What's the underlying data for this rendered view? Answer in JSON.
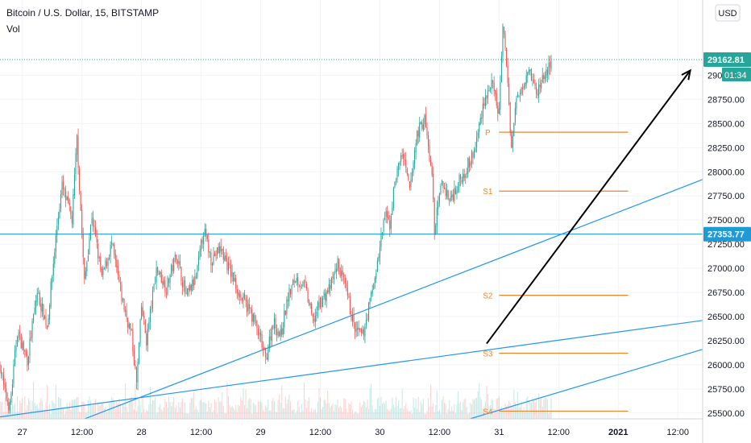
{
  "header": {
    "symbol_line": "Bitcoin / U.S. Dollar, 15, BITSTAMP",
    "indicator": "Vol"
  },
  "price_axis": {
    "currency_button": "USD",
    "current_price_label": "29162.81",
    "countdown_label": "01:34",
    "horizontal_line_label": "27353.77"
  },
  "colors": {
    "up": "#26a69a",
    "down": "#ef5350",
    "trendline": "#2196f3",
    "pivot": "#e8872b",
    "hline": "#1e9bd7",
    "current_tag": "#26a69a",
    "hline_tag": "#1e9bd7",
    "arrow": "#000000"
  },
  "chart_data": {
    "type": "candlestick",
    "title": "Bitcoin / U.S. Dollar, 15, BITSTAMP",
    "ylim": [
      25440,
      29780
    ],
    "y_ticks": [
      25500,
      25750,
      26000,
      26250,
      26500,
      26750,
      27000,
      27250,
      27500,
      27750,
      28000,
      28250,
      28500,
      28750,
      29000
    ],
    "x_ticks": [
      {
        "label": "27",
        "t": 0
      },
      {
        "label": "12:00",
        "t": 12
      },
      {
        "label": "28",
        "t": 24
      },
      {
        "label": "12:00",
        "t": 36
      },
      {
        "label": "29",
        "t": 48
      },
      {
        "label": "12:00",
        "t": 60
      },
      {
        "label": "30",
        "t": 72
      },
      {
        "label": "12:00",
        "t": 84
      },
      {
        "label": "31",
        "t": 96
      },
      {
        "label": "12:00",
        "t": 108
      },
      {
        "label": "2021",
        "t": 120
      },
      {
        "label": "12:00",
        "t": 132
      }
    ],
    "xlim_hours": [
      -4.5,
      137
    ],
    "price_path": [
      [
        -4.5,
        26000
      ],
      [
        -3.5,
        25700
      ],
      [
        -2.5,
        25560
      ],
      [
        -1,
        26350
      ],
      [
        1,
        26050
      ],
      [
        3,
        26750
      ],
      [
        5,
        26400
      ],
      [
        7,
        27450
      ],
      [
        8,
        27850
      ],
      [
        10,
        27500
      ],
      [
        11,
        28350
      ],
      [
        12.5,
        26850
      ],
      [
        14,
        27550
      ],
      [
        16,
        26900
      ],
      [
        18,
        27250
      ],
      [
        20,
        26700
      ],
      [
        22,
        26300
      ],
      [
        23,
        25800
      ],
      [
        24,
        26600
      ],
      [
        25,
        26250
      ],
      [
        27,
        27000
      ],
      [
        29,
        26800
      ],
      [
        31,
        27150
      ],
      [
        33,
        26700
      ],
      [
        35,
        26900
      ],
      [
        36.5,
        27400
      ],
      [
        38,
        27100
      ],
      [
        40,
        27200
      ],
      [
        42,
        26950
      ],
      [
        44,
        26700
      ],
      [
        46,
        26550
      ],
      [
        48,
        26250
      ],
      [
        49,
        26050
      ],
      [
        50.5,
        26450
      ],
      [
        52,
        26300
      ],
      [
        53.5,
        26700
      ],
      [
        55,
        26900
      ],
      [
        57,
        26800
      ],
      [
        58.5,
        26450
      ],
      [
        60,
        26650
      ],
      [
        62,
        26800
      ],
      [
        63.5,
        27050
      ],
      [
        65,
        26800
      ],
      [
        67,
        26350
      ],
      [
        68.5,
        26300
      ],
      [
        70,
        26650
      ],
      [
        71.5,
        27050
      ],
      [
        73,
        27550
      ],
      [
        74,
        27450
      ],
      [
        75,
        27900
      ],
      [
        76.5,
        28200
      ],
      [
        78,
        27800
      ],
      [
        79.5,
        28400
      ],
      [
        81,
        28550
      ],
      [
        82.5,
        27950
      ],
      [
        83,
        27400
      ],
      [
        84.5,
        27900
      ],
      [
        86,
        27700
      ],
      [
        88,
        27900
      ],
      [
        90,
        28100
      ],
      [
        91,
        28200
      ],
      [
        93,
        28750
      ],
      [
        94.5,
        28900
      ],
      [
        96,
        28600
      ],
      [
        96.7,
        29500
      ],
      [
        97.5,
        29150
      ],
      [
        98.5,
        28250
      ],
      [
        99.5,
        28750
      ],
      [
        101,
        28950
      ],
      [
        102,
        29100
      ],
      [
        103.5,
        28800
      ],
      [
        105,
        29000
      ],
      [
        106.5,
        29100
      ]
    ],
    "horizontal_line": 27353.77,
    "pivot_levels": [
      {
        "label": "P",
        "price": 28410
      },
      {
        "label": "S1",
        "price": 27800
      },
      {
        "label": "S2",
        "price": 26720
      },
      {
        "label": "S3",
        "price": 26120
      },
      {
        "label": "S4",
        "price": 25520
      }
    ],
    "pivot_x_hours": [
      96,
      122
    ],
    "trendlines": [
      {
        "from": [
          -4.5,
          25460
        ],
        "to": [
          137,
          26460
        ]
      },
      {
        "from": [
          -4.5,
          25100
        ],
        "to": [
          137,
          27920
        ]
      },
      {
        "from": [
          68,
          25100
        ],
        "to": [
          137,
          26160
        ]
      }
    ],
    "arrow": {
      "from": [
        93.5,
        26220
      ],
      "to": [
        134.5,
        29050
      ]
    }
  }
}
